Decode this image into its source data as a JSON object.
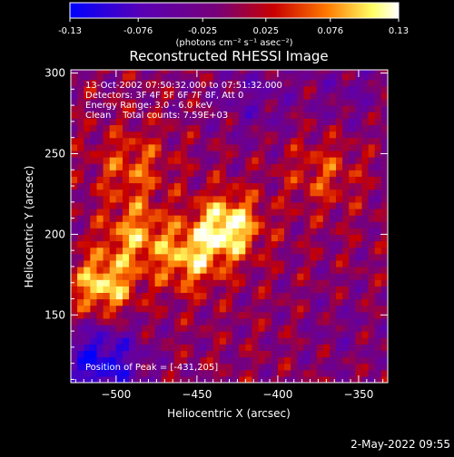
{
  "colorbar": {
    "tick_labels": [
      "-0.13",
      "-0.076",
      "-0.025",
      "0.025",
      "0.076",
      "0.13"
    ],
    "tick_values": [
      -0.13,
      -0.076,
      -0.025,
      0.025,
      0.076,
      0.13
    ],
    "range": [
      -0.13,
      0.13
    ],
    "units": "(photons cm⁻² s⁻¹ asec⁻²)"
  },
  "image_info": {
    "line1": "13-Oct-2002 07:50:32.000 to 07:51:32.000",
    "line2": "Detectors: 3F 4F 5F 6F 7F 8F, Att 0",
    "line3": "Energy Range: 3.0 - 6.0 keV",
    "line4": "Clean    Total counts: 7.59E+03",
    "peak": "Position of Peak = [-431,205]"
  },
  "footer": {
    "date": "2-May-2022 09:55"
  },
  "colors": {
    "background": "#000000",
    "colormap": [
      "#0000ff",
      "#5a00b4",
      "#780078",
      "#c80000",
      "#ff7800",
      "#ffff64",
      "#ffffff"
    ]
  },
  "chart_data": {
    "type": "heatmap",
    "title": "Reconstructed RHESSI Image",
    "xlabel": "Heliocentric X (arcsec)",
    "ylabel": "Heliocentric Y (arcsec)",
    "xlim": [
      -528,
      -332
    ],
    "ylim": [
      108,
      302
    ],
    "x_ticks": [
      -500,
      -450,
      -400,
      -350
    ],
    "y_ticks": [
      150,
      200,
      250,
      300
    ],
    "x_tick_labels": [
      "−500",
      "−450",
      "−400",
      "−350"
    ],
    "y_tick_labels": [
      "150",
      "200",
      "250",
      "300"
    ],
    "peak_position": [
      -431,
      205
    ],
    "value_range": [
      -0.13,
      0.13
    ],
    "notable_regions": [
      {
        "label": "bright source",
        "x": -431,
        "y": 205,
        "value": 0.13
      },
      {
        "label": "bright source",
        "x": -508,
        "y": 168,
        "value": 0.11
      },
      {
        "label": "bright source",
        "x": -488,
        "y": 200,
        "value": 0.08
      },
      {
        "label": "bright source",
        "x": -455,
        "y": 185,
        "value": 0.09
      },
      {
        "label": "ridge",
        "x": -372,
        "y": 238,
        "value": 0.05
      },
      {
        "label": "ridge",
        "x": -490,
        "y": 242,
        "value": 0.06
      },
      {
        "label": "negative lobe",
        "x": -510,
        "y": 120,
        "value": -0.11
      },
      {
        "label": "negative lobe",
        "x": -415,
        "y": 285,
        "value": -0.04
      },
      {
        "label": "negative lobe",
        "x": -355,
        "y": 290,
        "value": -0.03
      },
      {
        "label": "negative lobe",
        "x": -360,
        "y": 140,
        "value": -0.02
      }
    ]
  }
}
